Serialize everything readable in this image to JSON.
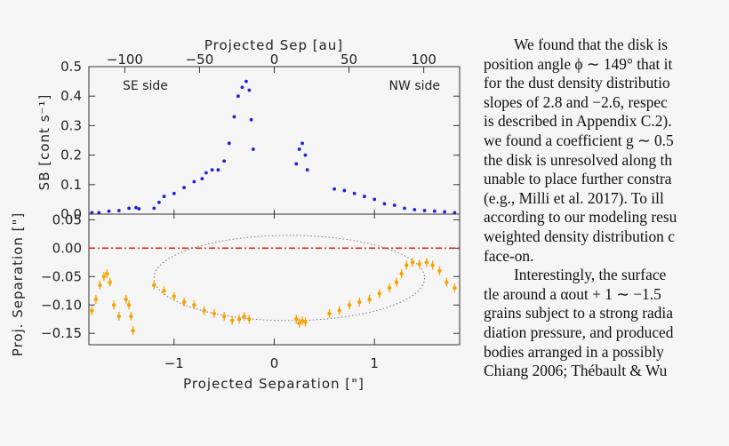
{
  "figure": {
    "top_axis_label": "Projected Sep [au]",
    "top_ticks": [
      "−100",
      "−50",
      "0",
      "50",
      "100"
    ],
    "upper_panel": {
      "ylabel": "SB [cont s⁻¹]",
      "yticks": [
        "0.0",
        "0.1",
        "0.2",
        "0.3",
        "0.4",
        "0.5"
      ],
      "left_annotation": "SE side",
      "right_annotation": "NW side"
    },
    "lower_panel": {
      "ylabel": "Proj. Separation [\"]",
      "yticks": [
        "0.05",
        "0.00",
        "−0.05",
        "−0.10",
        "−0.15"
      ]
    },
    "bottom_axis_label": "Projected Separation [\"]",
    "bottom_ticks": [
      "−1",
      "0",
      "1"
    ],
    "colors": {
      "sb_points": "#1f1fd6",
      "separation_points": "#f5a300",
      "zero_line": "#e0241b",
      "ellipse": "#777777"
    }
  },
  "chart_data": [
    {
      "type": "scatter",
      "panel": "upper",
      "xlabel": "Projected Separation [\"]",
      "ylabel": "SB [cont s⁻¹]",
      "xlim": [
        -1.85,
        1.85
      ],
      "ylim": [
        0,
        0.5
      ],
      "secondary_xlabel": "Projected Sep [au]",
      "secondary_xlim": [
        -124,
        124
      ],
      "annotations": [
        "SE side",
        "NW side"
      ],
      "series": [
        {
          "color": "#1f1fd6",
          "points": [
            [
              -1.82,
              0.005
            ],
            [
              -1.75,
              0.005
            ],
            [
              -1.65,
              0.01
            ],
            [
              -1.55,
              0.012
            ],
            [
              -1.45,
              0.02
            ],
            [
              -1.38,
              0.022
            ],
            [
              -1.35,
              0.018
            ],
            [
              -1.2,
              0.02
            ],
            [
              -1.15,
              0.04
            ],
            [
              -1.1,
              0.06
            ],
            [
              -1.0,
              0.07
            ],
            [
              -0.9,
              0.09
            ],
            [
              -0.8,
              0.11
            ],
            [
              -0.72,
              0.12
            ],
            [
              -0.68,
              0.14
            ],
            [
              -0.62,
              0.15
            ],
            [
              -0.56,
              0.15
            ],
            [
              -0.5,
              0.18
            ],
            [
              -0.45,
              0.24
            ],
            [
              -0.4,
              0.33
            ],
            [
              -0.36,
              0.4
            ],
            [
              -0.32,
              0.43
            ],
            [
              -0.28,
              0.45
            ],
            [
              -0.25,
              0.42
            ],
            [
              -0.23,
              0.32
            ],
            [
              -0.21,
              0.22
            ],
            [
              0.22,
              0.17
            ],
            [
              0.25,
              0.22
            ],
            [
              0.28,
              0.24
            ],
            [
              0.31,
              0.2
            ],
            [
              0.33,
              0.15
            ],
            [
              0.6,
              0.085
            ],
            [
              0.7,
              0.08
            ],
            [
              0.8,
              0.07
            ],
            [
              0.9,
              0.06
            ],
            [
              1.0,
              0.05
            ],
            [
              1.1,
              0.035
            ],
            [
              1.2,
              0.03
            ],
            [
              1.3,
              0.02
            ],
            [
              1.4,
              0.015
            ],
            [
              1.5,
              0.012
            ],
            [
              1.6,
              0.01
            ],
            [
              1.7,
              0.008
            ],
            [
              1.8,
              0.005
            ]
          ]
        }
      ]
    },
    {
      "type": "scatter",
      "panel": "lower",
      "xlabel": "Projected Separation [\"]",
      "ylabel": "Proj. Separation [\"]",
      "xlim": [
        -1.85,
        1.85
      ],
      "ylim": [
        -0.17,
        0.06
      ],
      "reference_line_y": 0.0,
      "ellipse": {
        "center_x": 0.15,
        "center_y": -0.0525,
        "semi_x": 1.35,
        "semi_y": 0.075
      },
      "series": [
        {
          "color": "#f5a300",
          "points": [
            [
              -1.82,
              -0.11
            ],
            [
              -1.78,
              -0.09
            ],
            [
              -1.74,
              -0.065
            ],
            [
              -1.7,
              -0.05
            ],
            [
              -1.67,
              -0.045
            ],
            [
              -1.64,
              -0.06
            ],
            [
              -1.6,
              -0.1
            ],
            [
              -1.55,
              -0.12
            ],
            [
              -1.48,
              -0.09
            ],
            [
              -1.45,
              -0.1
            ],
            [
              -1.43,
              -0.12
            ],
            [
              -1.41,
              -0.145
            ],
            [
              -1.2,
              -0.065
            ],
            [
              -1.1,
              -0.075
            ],
            [
              -1.0,
              -0.085
            ],
            [
              -0.9,
              -0.095
            ],
            [
              -0.8,
              -0.1
            ],
            [
              -0.7,
              -0.11
            ],
            [
              -0.6,
              -0.115
            ],
            [
              -0.5,
              -0.12
            ],
            [
              -0.42,
              -0.127
            ],
            [
              -0.35,
              -0.125
            ],
            [
              -0.3,
              -0.12
            ],
            [
              -0.25,
              -0.125
            ],
            [
              0.22,
              -0.125
            ],
            [
              0.25,
              -0.132
            ],
            [
              0.28,
              -0.128
            ],
            [
              0.31,
              -0.13
            ],
            [
              0.55,
              -0.115
            ],
            [
              0.65,
              -0.11
            ],
            [
              0.75,
              -0.1
            ],
            [
              0.85,
              -0.095
            ],
            [
              0.95,
              -0.09
            ],
            [
              1.05,
              -0.08
            ],
            [
              1.15,
              -0.07
            ],
            [
              1.22,
              -0.06
            ],
            [
              1.27,
              -0.045
            ],
            [
              1.32,
              -0.03
            ],
            [
              1.38,
              -0.025
            ],
            [
              1.45,
              -0.028
            ],
            [
              1.52,
              -0.025
            ],
            [
              1.58,
              -0.03
            ],
            [
              1.65,
              -0.04
            ],
            [
              1.72,
              -0.06
            ],
            [
              1.8,
              -0.07
            ]
          ]
        }
      ]
    }
  ],
  "paragraphs": [
    {
      "lines": [
        "We found that the disk is",
        "position angle ϕ ∼ 149° that it",
        "for the dust density distributio",
        "slopes of 2.8 and −2.6, respec",
        "is described in Appendix C.2).",
        "we found a coefficient g ∼ 0.5",
        "the disk is unresolved along th",
        "unable to place further constra",
        "(e.g., Milli et al. 2017). To ill",
        "according to our modeling resu",
        "weighted density distribution c",
        "face-on."
      ]
    },
    {
      "lines": [
        "Interestingly, the surface",
        "tle around a αout + 1 ∼ −1.5",
        "grains subject to a strong radia",
        "diation pressure, and produced",
        "bodies arranged in a possibly",
        "Chiang 2006; Thébault & Wu"
      ]
    }
  ]
}
